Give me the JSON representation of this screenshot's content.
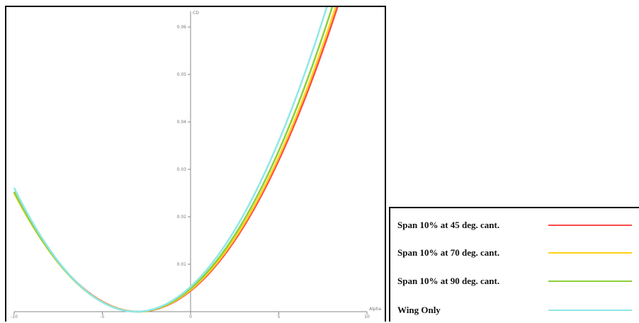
{
  "chart_data": {
    "type": "line",
    "title": "",
    "xlabel": "Alpha",
    "ylabel": "CD",
    "xlim": [
      -10,
      10
    ],
    "ylim": [
      0,
      0.063
    ],
    "x_ticks": [
      {
        "value": -10,
        "label": "-10"
      },
      {
        "value": -5,
        "label": "-5"
      },
      {
        "value": 0,
        "label": "0"
      },
      {
        "value": 5,
        "label": "5"
      },
      {
        "value": 10,
        "label": "10"
      }
    ],
    "y_ticks": [
      {
        "value": 0.01,
        "label": "0.01"
      },
      {
        "value": 0.02,
        "label": "0.02"
      },
      {
        "value": 0.03,
        "label": "0.03"
      },
      {
        "value": 0.04,
        "label": "0.04"
      },
      {
        "value": 0.05,
        "label": "0.05"
      },
      {
        "value": 0.06,
        "label": "0.06"
      }
    ],
    "series": [
      {
        "name": "Span 10% at 45 deg. cant.",
        "color": "#ff4a4a",
        "cd0": 0.0,
        "alpha0": -2.95,
        "k": 0.000505
      },
      {
        "name": "Span 10% at 70 deg. cant.",
        "color": "#ffd21a",
        "cd0": 0.0,
        "alpha0": -3.0,
        "k": 0.00051
      },
      {
        "name": "Span 10% at 90 deg. cant.",
        "color": "#8ccf3a",
        "cd0": 0.0,
        "alpha0": -3.05,
        "k": 0.000523
      },
      {
        "name": "Wing Only",
        "color": "#8fe7e8",
        "cd0": 0.0,
        "alpha0": -3.1,
        "k": 0.000548
      }
    ],
    "grid": false,
    "legend_position": "bottom-right"
  }
}
